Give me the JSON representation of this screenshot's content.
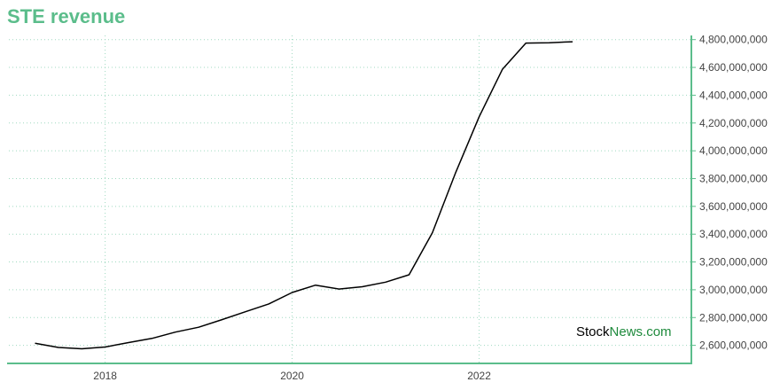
{
  "chart_data": {
    "type": "line",
    "title": "STE revenue",
    "xlabel": "",
    "ylabel": "",
    "x_ticks": [
      {
        "year": 2018,
        "label": "2018"
      },
      {
        "year": 2020,
        "label": "2020"
      },
      {
        "year": 2022,
        "label": "2022"
      }
    ],
    "xlim": [
      2016.97,
      2024.27
    ],
    "ylim": [
      2470000000,
      4830000000
    ],
    "y_ticks": [
      {
        "value": 2600000000,
        "label": "2,600,000,000"
      },
      {
        "value": 2800000000,
        "label": "2,800,000,000"
      },
      {
        "value": 3000000000,
        "label": "3,000,000,000"
      },
      {
        "value": 3200000000,
        "label": "3,200,000,000"
      },
      {
        "value": 3400000000,
        "label": "3,400,000,000"
      },
      {
        "value": 3600000000,
        "label": "3,600,000,000"
      },
      {
        "value": 3800000000,
        "label": "3,800,000,000"
      },
      {
        "value": 4000000000,
        "label": "4,000,000,000"
      },
      {
        "value": 4200000000,
        "label": "4,200,000,000"
      },
      {
        "value": 4400000000,
        "label": "4,400,000,000"
      },
      {
        "value": 4600000000,
        "label": "4,600,000,000"
      },
      {
        "value": 4800000000,
        "label": "4,800,000,000"
      }
    ],
    "grid": true,
    "series": [
      {
        "color": "#000000",
        "points": [
          {
            "x": 2017.25,
            "y": 2615000000
          },
          {
            "x": 2017.5,
            "y": 2585000000
          },
          {
            "x": 2017.75,
            "y": 2575000000
          },
          {
            "x": 2018.0,
            "y": 2588000000
          },
          {
            "x": 2018.25,
            "y": 2620000000
          },
          {
            "x": 2018.5,
            "y": 2650000000
          },
          {
            "x": 2018.75,
            "y": 2695000000
          },
          {
            "x": 2019.0,
            "y": 2730000000
          },
          {
            "x": 2019.25,
            "y": 2785000000
          },
          {
            "x": 2019.5,
            "y": 2842000000
          },
          {
            "x": 2019.75,
            "y": 2898000000
          },
          {
            "x": 2020.0,
            "y": 2980000000
          },
          {
            "x": 2020.25,
            "y": 3033000000
          },
          {
            "x": 2020.5,
            "y": 3005000000
          },
          {
            "x": 2020.75,
            "y": 3022000000
          },
          {
            "x": 2021.0,
            "y": 3055000000
          },
          {
            "x": 2021.25,
            "y": 3108000000
          },
          {
            "x": 2021.5,
            "y": 3410000000
          },
          {
            "x": 2021.75,
            "y": 3845000000
          },
          {
            "x": 2022.0,
            "y": 4245000000
          },
          {
            "x": 2022.25,
            "y": 4587000000
          },
          {
            "x": 2022.5,
            "y": 4775000000
          },
          {
            "x": 2022.75,
            "y": 4778000000
          },
          {
            "x": 2023.0,
            "y": 4785000000
          }
        ]
      }
    ],
    "colors": {
      "title": "#5bbd8b",
      "axis": "#5bbd8b",
      "grid": "#9fd9c0",
      "line": "#000000"
    }
  },
  "watermark": {
    "part1": "Stock",
    "part2": "News",
    "part3": ".com",
    "color1": "#000000",
    "color2": "#1e8a3c"
  }
}
